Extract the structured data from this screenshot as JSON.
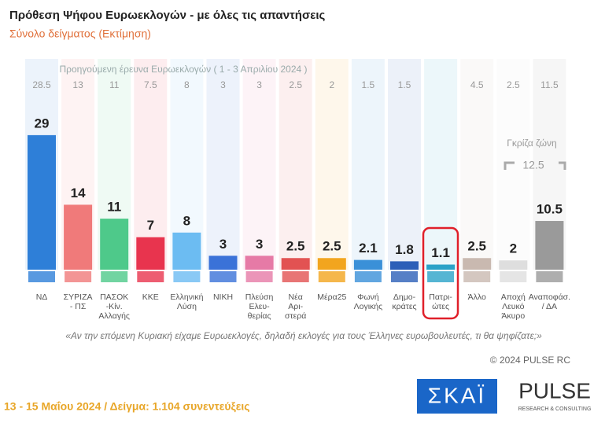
{
  "chart_data": {
    "type": "bar",
    "title": "Πρόθεση Ψήφου Ευρωεκλογών - με όλες τις απαντήσεις",
    "subtitle": "Σύνολο δείγματος   (Εκτίμηση)",
    "previous_label": "Προηγούμενη έρευνα Ευρωεκλογών ( 1 - 3 Απριλίου 2024 )",
    "categories": [
      [
        "ΝΔ"
      ],
      [
        "ΣΥΡΙΖΑ",
        "- ΠΣ"
      ],
      [
        "ΠΑΣΟΚ",
        "-Κίν.",
        "Αλλαγής"
      ],
      [
        "ΚΚΕ"
      ],
      [
        "Ελληνική",
        "Λύση"
      ],
      [
        "ΝΙΚΗ"
      ],
      [
        "Πλεύση",
        "Ελευ-",
        "θερίας"
      ],
      [
        "Νέα",
        "Αρι-",
        "στερά"
      ],
      [
        "Μέρα25"
      ],
      [
        "Φωνή",
        "Λογικής"
      ],
      [
        "Δημο-",
        "κράτες"
      ],
      [
        "Πατρι-",
        "ώτες"
      ],
      [
        "Άλλο"
      ],
      [
        "Αποχή",
        "Λευκό",
        "Άκυρο"
      ],
      [
        "Αναποφάσ.",
        "/ ΔΑ"
      ]
    ],
    "values": [
      29,
      14,
      11,
      7,
      8,
      3,
      3,
      2.5,
      2.5,
      2.1,
      1.8,
      1.1,
      2.5,
      2,
      10.5
    ],
    "previous_values": [
      28.5,
      13,
      11,
      7.5,
      8,
      3,
      3,
      2.5,
      2,
      1.5,
      1.5,
      null,
      4.5,
      2.5,
      11.5
    ],
    "colors": [
      "#2e7fd8",
      "#f07a7a",
      "#4ec98a",
      "#e8344e",
      "#6cbcf2",
      "#3a72d8",
      "#e67aa6",
      "#e25252",
      "#f2a51e",
      "#3a90d8",
      "#2c5fb8",
      "#2aa2c8",
      "#c9b9b0",
      "#dedede",
      "#9a9a9a"
    ],
    "gray_zone_label": "Γκρίζα ζώνη",
    "gray_zone_value": 12.5,
    "question": "«Αν την επόμενη Κυριακή είχαμε Ευρωεκλογές, δηλαδή εκλογές για τους Έλληνες ευρωβουλευτές, τι θα ψηφίζατε;»",
    "copyright": "© 2024 PULSE RC",
    "footer": "13 - 15  Μαΐου  2024  /  Δείγμα:  1.104 συνεντεύξεις",
    "logo_skai": "ΣΚΑΪ",
    "logo_pulse": "PULSE",
    "logo_pulse_sub": "RESEARCH & CONSULTING"
  }
}
